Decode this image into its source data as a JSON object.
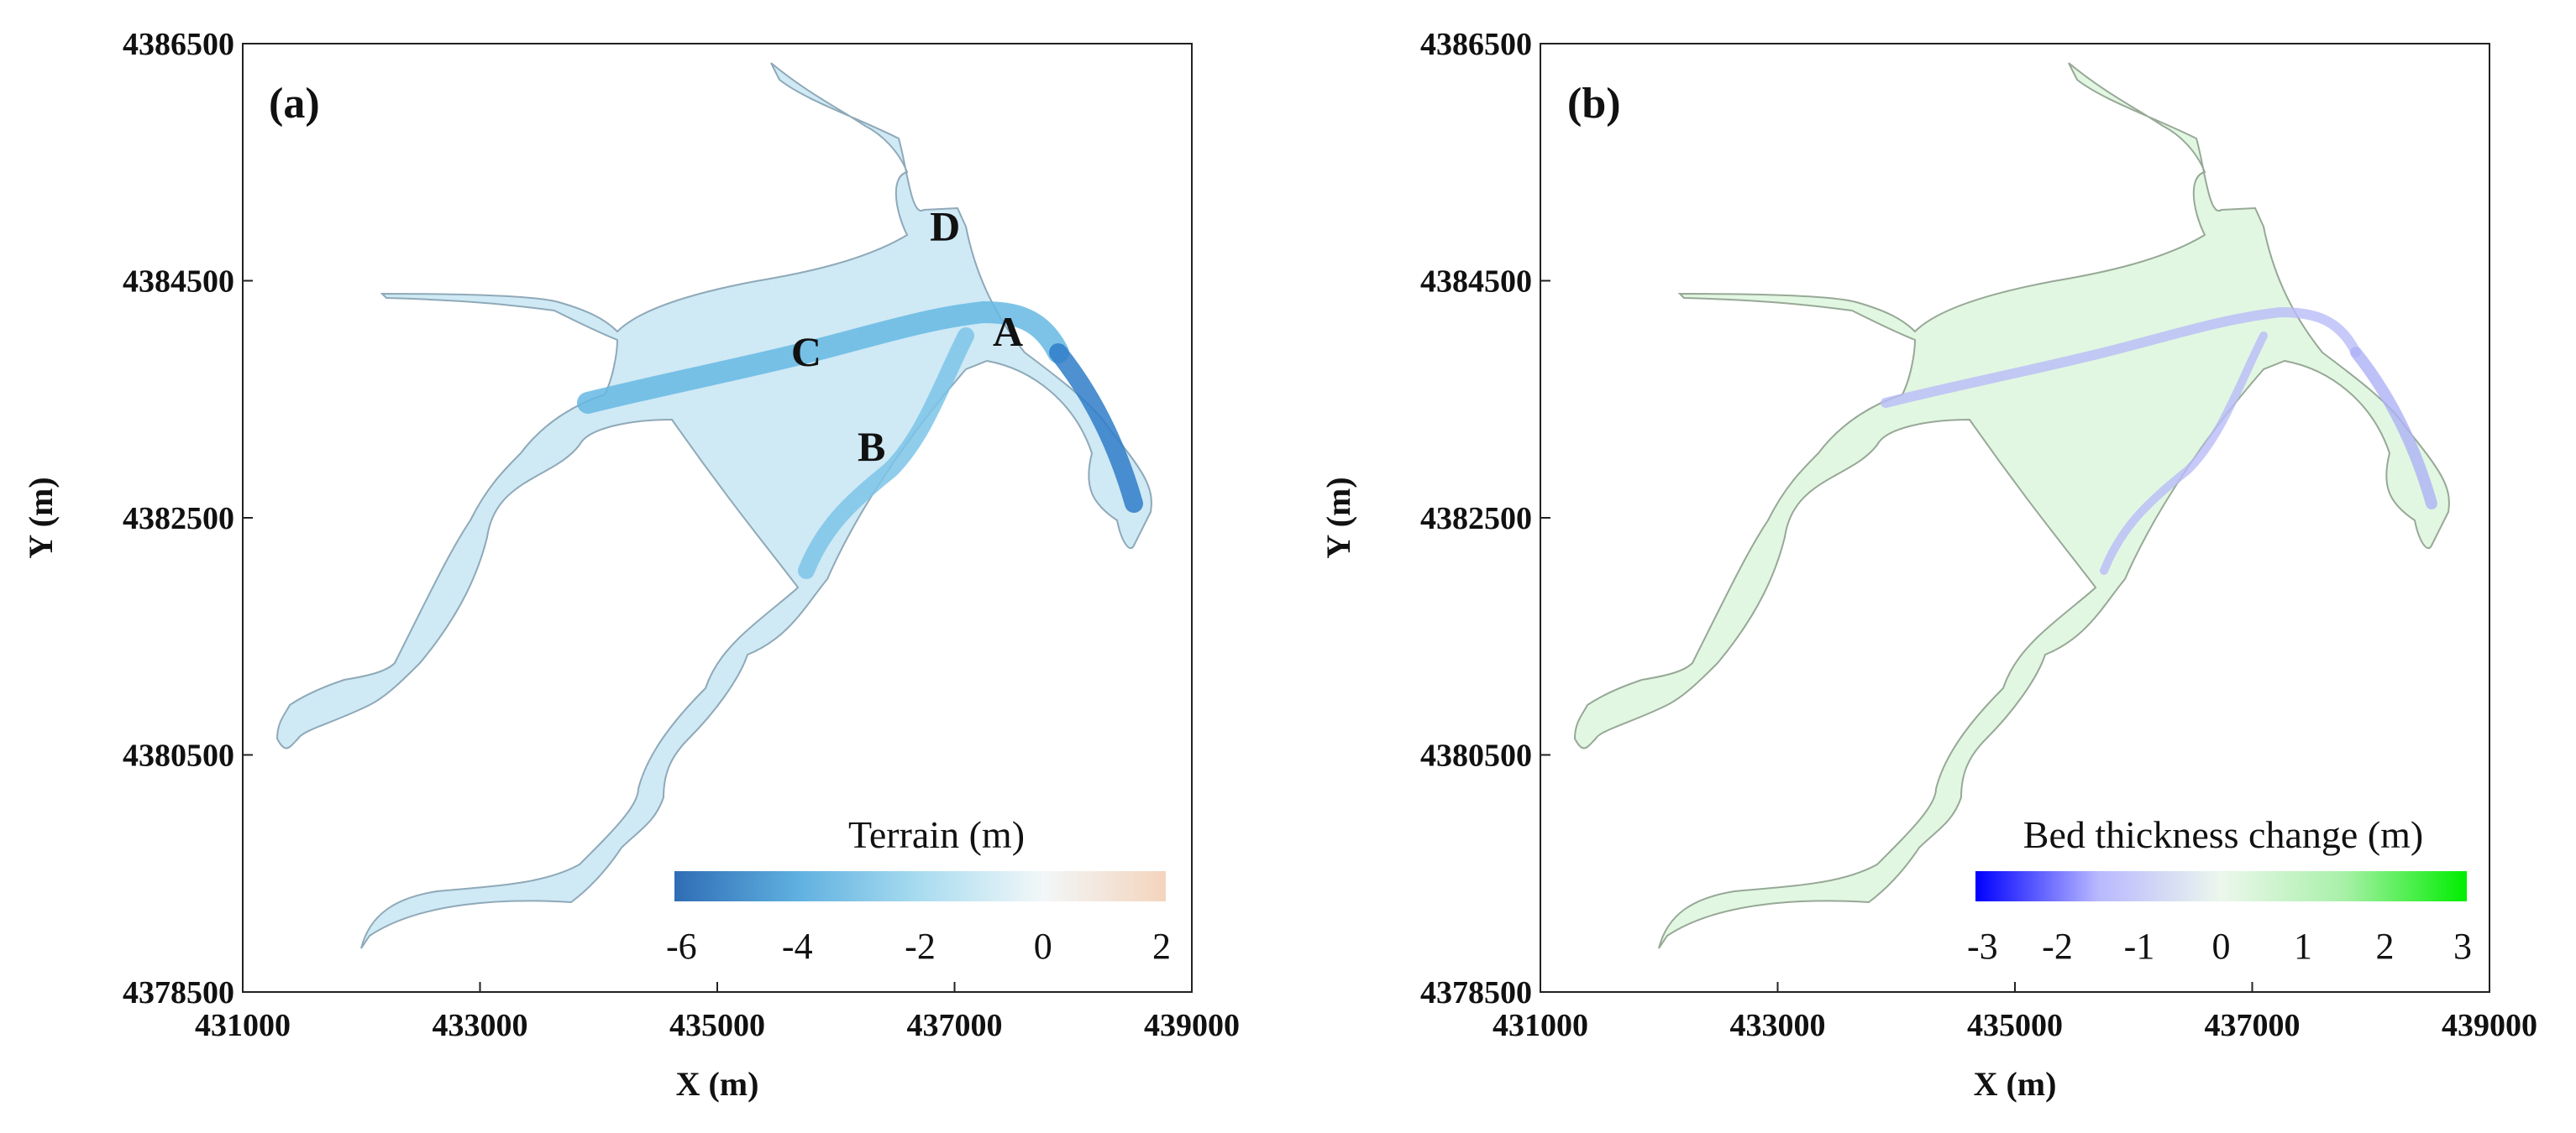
{
  "chart_data": [
    {
      "type": "heatmap",
      "panel_label": "(a)",
      "xlabel": "X (m)",
      "ylabel": "Y (m)",
      "xlim": [
        431000,
        439000
      ],
      "ylim": [
        4378500,
        4386500
      ],
      "x_ticks": [
        "431000",
        "433000",
        "435000",
        "437000",
        "439000"
      ],
      "y_ticks": [
        "4378500",
        "4380500",
        "4382500",
        "4384500",
        "4386500"
      ],
      "colorbar": {
        "title": "Terrain (m)",
        "ticks": [
          "-6",
          "-4",
          "-2",
          "0",
          "2"
        ],
        "range": [
          -6,
          2
        ],
        "colors": [
          "#2f6db5",
          "#5fb0e0",
          "#a9dcf0",
          "#f2f7f8",
          "#f4d4bd"
        ],
        "placement": "bottom-right"
      },
      "point_labels": [
        {
          "text": "A",
          "x": 437450,
          "y": 4383950
        },
        {
          "text": "B",
          "x": 436300,
          "y": 4382980
        },
        {
          "text": "C",
          "x": 435750,
          "y": 4383780
        },
        {
          "text": "D",
          "x": 436920,
          "y": 4384840
        }
      ]
    },
    {
      "type": "heatmap",
      "panel_label": "(b)",
      "xlabel": "X (m)",
      "ylabel": "Y (m)",
      "xlim": [
        431000,
        439000
      ],
      "ylim": [
        4378500,
        4386500
      ],
      "x_ticks": [
        "431000",
        "433000",
        "435000",
        "437000",
        "439000"
      ],
      "y_ticks": [
        "4378500",
        "4380500",
        "4382500",
        "4384500",
        "4386500"
      ],
      "colorbar": {
        "title": "Bed thickness change (m)",
        "ticks": [
          "-3",
          "-2",
          "-1",
          "0",
          "1",
          "2",
          "3"
        ],
        "range": [
          -3,
          3
        ],
        "colors": [
          "#0000ff",
          "#b8b8ff",
          "#ecf7ec",
          "#a8f0a8",
          "#00ee00"
        ],
        "placement": "bottom-right"
      },
      "point_labels": []
    }
  ]
}
